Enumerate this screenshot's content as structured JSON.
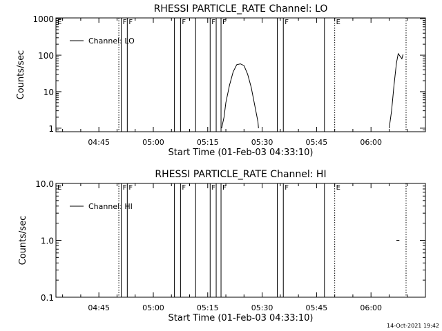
{
  "footer_timestamp": "14-Oct-2021 19:42",
  "colors": {
    "background": "#ffffff",
    "foreground": "#000000"
  },
  "chart_data": [
    {
      "type": "line",
      "title": "RHESSI PARTICLE_RATE Channel: LO",
      "xlabel": "Start Time (01-Feb-03 04:33:10)",
      "ylabel": "Counts/sec",
      "y_scale": "log",
      "ylim": [
        0.8,
        1050
      ],
      "x_axis_unit": "UT time of day",
      "xlim": [
        "04:33:10",
        "06:15:00"
      ],
      "x_ticks": [
        "04:45",
        "05:00",
        "05:15",
        "05:30",
        "05:45",
        "06:00"
      ],
      "y_ticks": [
        "1",
        "10",
        "100",
        "1000"
      ],
      "legend": {
        "label": "Channel: LO",
        "position": "top-left"
      },
      "grid": false,
      "series": [
        {
          "name": "Channel: LO",
          "segments": [
            {
              "x": [
                "05:18:50",
                "05:19:30",
                "05:20:00",
                "05:21:00",
                "05:22:00",
                "05:23:00",
                "05:24:00",
                "05:25:00",
                "05:26:00",
                "05:27:00",
                "05:28:00",
                "05:28:50",
                "05:29:00"
              ],
              "y": [
                1,
                2,
                5,
                15,
                35,
                55,
                58,
                52,
                30,
                13,
                4,
                1.5,
                1
              ]
            },
            {
              "x": [
                "06:05:00",
                "06:05:40",
                "06:06:20",
                "06:07:00",
                "06:07:30",
                "06:08:30",
                "06:08:50"
              ],
              "y": [
                1,
                3,
                15,
                60,
                110,
                80,
                105
              ]
            }
          ]
        }
      ],
      "markers": [
        {
          "time": "04:33:10",
          "style": "solid",
          "label": "E"
        },
        {
          "time": "04:50:30",
          "style": "dotted",
          "label": ""
        },
        {
          "time": "04:51:10",
          "style": "solid",
          "label": "F"
        },
        {
          "time": "04:52:50",
          "style": "solid",
          "label": "F"
        },
        {
          "time": "05:05:50",
          "style": "solid",
          "label": ""
        },
        {
          "time": "05:07:30",
          "style": "solid",
          "label": "F"
        },
        {
          "time": "05:11:40",
          "style": "solid",
          "label": ""
        },
        {
          "time": "05:15:40",
          "style": "solid",
          "label": "F"
        },
        {
          "time": "05:17:20",
          "style": "solid",
          "label": ""
        },
        {
          "time": "05:18:40",
          "style": "solid",
          "label": "F"
        },
        {
          "time": "05:34:10",
          "style": "solid",
          "label": ""
        },
        {
          "time": "05:35:50",
          "style": "solid",
          "label": "F"
        },
        {
          "time": "05:47:10",
          "style": "solid",
          "label": ""
        },
        {
          "time": "05:50:00",
          "style": "dotted",
          "label": "E"
        },
        {
          "time": "06:09:40",
          "style": "dotted",
          "label": ""
        }
      ]
    },
    {
      "type": "line",
      "title": "RHESSI PARTICLE_RATE Channel: HI",
      "xlabel": "Start Time (01-Feb-03 04:33:10)",
      "ylabel": "Counts/sec",
      "y_scale": "log",
      "ylim": [
        0.1,
        10
      ],
      "x_axis_unit": "UT time of day",
      "xlim": [
        "04:33:10",
        "06:15:00"
      ],
      "x_ticks": [
        "04:45",
        "05:00",
        "05:15",
        "05:30",
        "05:45",
        "06:00"
      ],
      "y_ticks": [
        "0.1",
        "1.0",
        "10.0"
      ],
      "legend": {
        "label": "Channel: HI",
        "position": "top-left"
      },
      "grid": false,
      "series": [
        {
          "name": "Channel: HI",
          "segments": [
            {
              "x": [
                "06:07:00",
                "06:07:50"
              ],
              "y": [
                1,
                1
              ]
            }
          ]
        }
      ],
      "markers": [
        {
          "time": "04:33:10",
          "style": "solid",
          "label": "E"
        },
        {
          "time": "04:50:30",
          "style": "dotted",
          "label": ""
        },
        {
          "time": "04:51:10",
          "style": "solid",
          "label": "F"
        },
        {
          "time": "04:52:50",
          "style": "solid",
          "label": "F"
        },
        {
          "time": "05:05:50",
          "style": "solid",
          "label": ""
        },
        {
          "time": "05:07:30",
          "style": "solid",
          "label": "F"
        },
        {
          "time": "05:11:40",
          "style": "solid",
          "label": ""
        },
        {
          "time": "05:15:40",
          "style": "solid",
          "label": "F"
        },
        {
          "time": "05:17:20",
          "style": "solid",
          "label": ""
        },
        {
          "time": "05:18:40",
          "style": "solid",
          "label": "F"
        },
        {
          "time": "05:34:10",
          "style": "solid",
          "label": ""
        },
        {
          "time": "05:35:50",
          "style": "solid",
          "label": "F"
        },
        {
          "time": "05:47:10",
          "style": "solid",
          "label": ""
        },
        {
          "time": "05:50:00",
          "style": "dotted",
          "label": "E"
        },
        {
          "time": "06:09:40",
          "style": "dotted",
          "label": ""
        }
      ]
    }
  ]
}
